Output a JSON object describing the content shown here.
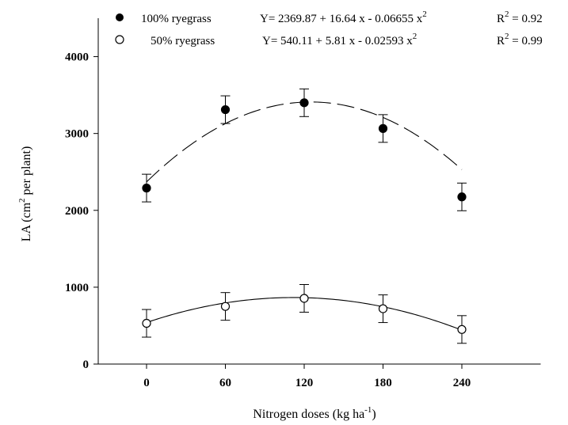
{
  "chart_data": {
    "type": "scatter",
    "x": [
      0,
      60,
      120,
      180,
      240
    ],
    "xlabel": {
      "main": "Nitrogen doses (kg ha",
      "sup": "-1",
      "tail": ")"
    },
    "ylabel": {
      "main": "LA (cm",
      "sup": "2",
      "tail": " per plant)"
    },
    "xlim": [
      -45,
      300
    ],
    "ylim": [
      0,
      4500
    ],
    "x_ticks": [
      0,
      60,
      120,
      180,
      240
    ],
    "y_ticks": [
      0,
      1000,
      2000,
      3000,
      4000
    ],
    "x_tick_labels": [
      "0",
      "60",
      "120",
      "180",
      "240"
    ],
    "y_tick_labels": [
      "0",
      "1000",
      "2000",
      "3000",
      "4000"
    ],
    "grid": false,
    "legend_position": "top",
    "series": [
      {
        "name": "100% ryegrass",
        "marker": "filled-circle",
        "line_style": "dashed",
        "values": [
          2290,
          3310,
          3400,
          3065,
          2175
        ],
        "error": [
          180,
          180,
          180,
          180,
          180
        ],
        "fit": {
          "intercept": 2369.87,
          "linear": 16.64,
          "quadratic": -0.06655
        },
        "equation": {
          "lead": "Y= 2369.87 + 16.64 x  - 0.06655 x",
          "sup": "2"
        },
        "r2": {
          "lead": "R",
          "sup": "2",
          "tail": " = 0.92"
        }
      },
      {
        "name": "50% ryegrass",
        "marker": "open-circle",
        "line_style": "solid",
        "values": [
          530,
          750,
          855,
          720,
          450
        ],
        "error": [
          180,
          180,
          180,
          180,
          180
        ],
        "fit": {
          "intercept": 540.11,
          "linear": 5.81,
          "quadratic": -0.02593
        },
        "equation": {
          "lead": "Y= 540.11 + 5.81 x  - 0.02593 x",
          "sup": "2"
        },
        "r2": {
          "lead": "R",
          "sup": "2",
          "tail": " = 0.99"
        }
      }
    ],
    "colors": {
      "ink": "#000000",
      "open_marker_fill": "#ffffff"
    }
  }
}
